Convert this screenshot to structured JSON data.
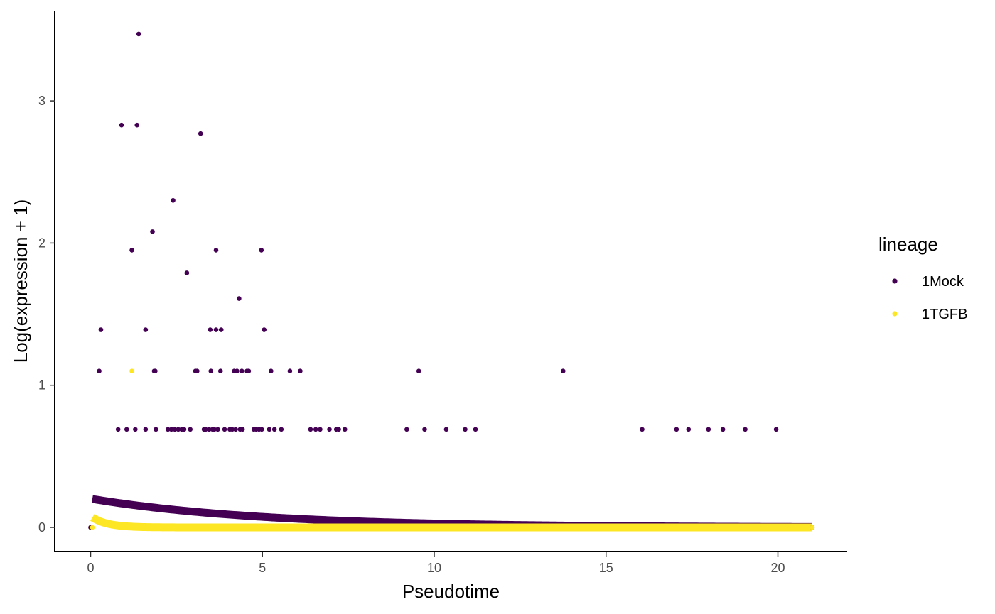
{
  "chart_data": {
    "type": "scatter",
    "title": "",
    "xlabel": "Pseudotime",
    "ylabel": "Log(expression + 1)",
    "xlim": [
      -1,
      22
    ],
    "ylim": [
      -0.17,
      3.63
    ],
    "x_ticks": [
      0,
      5,
      10,
      15,
      20
    ],
    "y_ticks": [
      0,
      1,
      2,
      3
    ],
    "grid": false,
    "legend": {
      "title": "lineage",
      "position": "right"
    },
    "series": [
      {
        "name": "1Mock",
        "color": "#440154",
        "points": [
          [
            0.0,
            0.0
          ],
          [
            0.25,
            1.1
          ],
          [
            0.3,
            1.39
          ],
          [
            0.8,
            0.69
          ],
          [
            0.9,
            2.83
          ],
          [
            1.05,
            0.69
          ],
          [
            1.2,
            1.95
          ],
          [
            1.3,
            0.69
          ],
          [
            1.35,
            2.83
          ],
          [
            1.4,
            3.47
          ],
          [
            1.6,
            1.39
          ],
          [
            1.6,
            0.69
          ],
          [
            1.8,
            2.08
          ],
          [
            1.85,
            1.1
          ],
          [
            1.9,
            0.69
          ],
          [
            1.88,
            1.1
          ],
          [
            2.25,
            0.69
          ],
          [
            2.35,
            0.69
          ],
          [
            2.4,
            2.3
          ],
          [
            2.45,
            0.69
          ],
          [
            2.55,
            0.69
          ],
          [
            2.65,
            0.69
          ],
          [
            2.72,
            0.69
          ],
          [
            2.8,
            1.79
          ],
          [
            2.9,
            0.69
          ],
          [
            3.05,
            1.1
          ],
          [
            3.1,
            1.1
          ],
          [
            3.2,
            2.77
          ],
          [
            3.3,
            0.69
          ],
          [
            3.35,
            0.69
          ],
          [
            3.45,
            0.69
          ],
          [
            3.48,
            1.39
          ],
          [
            3.5,
            1.1
          ],
          [
            3.55,
            0.69
          ],
          [
            3.6,
            0.69
          ],
          [
            3.65,
            1.95
          ],
          [
            3.65,
            1.39
          ],
          [
            3.7,
            0.69
          ],
          [
            3.78,
            1.1
          ],
          [
            3.8,
            1.39
          ],
          [
            3.9,
            0.69
          ],
          [
            4.05,
            0.69
          ],
          [
            4.12,
            0.69
          ],
          [
            4.18,
            1.1
          ],
          [
            4.22,
            0.69
          ],
          [
            4.26,
            1.1
          ],
          [
            4.32,
            1.61
          ],
          [
            4.35,
            0.69
          ],
          [
            4.4,
            1.1
          ],
          [
            4.42,
            0.69
          ],
          [
            4.55,
            1.1
          ],
          [
            4.6,
            1.1
          ],
          [
            4.75,
            0.69
          ],
          [
            4.82,
            0.69
          ],
          [
            4.9,
            0.69
          ],
          [
            4.97,
            1.95
          ],
          [
            4.98,
            0.69
          ],
          [
            5.05,
            1.39
          ],
          [
            5.2,
            0.69
          ],
          [
            5.25,
            1.1
          ],
          [
            5.35,
            0.69
          ],
          [
            5.55,
            0.69
          ],
          [
            5.8,
            1.1
          ],
          [
            6.1,
            1.1
          ],
          [
            6.4,
            0.69
          ],
          [
            6.55,
            0.69
          ],
          [
            6.68,
            0.69
          ],
          [
            6.95,
            0.69
          ],
          [
            7.15,
            0.69
          ],
          [
            7.22,
            0.69
          ],
          [
            7.4,
            0.69
          ],
          [
            9.2,
            0.69
          ],
          [
            9.55,
            1.1
          ],
          [
            9.72,
            0.69
          ],
          [
            10.35,
            0.69
          ],
          [
            10.9,
            0.69
          ],
          [
            11.2,
            0.69
          ],
          [
            13.75,
            1.1
          ],
          [
            16.05,
            0.69
          ],
          [
            17.05,
            0.69
          ],
          [
            17.4,
            0.69
          ],
          [
            17.98,
            0.69
          ],
          [
            18.4,
            0.69
          ],
          [
            19.05,
            0.69
          ],
          [
            19.95,
            0.69
          ],
          [
            21.0,
            0.0
          ]
        ],
        "smooth": {
          "y0": 0.2,
          "decay": 0.2,
          "x_start": 0.05,
          "x_end": 21.0
        }
      },
      {
        "name": "1TGFB",
        "color": "#FDE725",
        "points": [
          [
            1.2,
            1.1
          ],
          [
            0.05,
            0.0
          ],
          [
            21.0,
            0.0
          ]
        ],
        "smooth": {
          "y0": 0.07,
          "decay": 2.2,
          "x_start": 0.05,
          "x_end": 21.0
        }
      }
    ]
  }
}
